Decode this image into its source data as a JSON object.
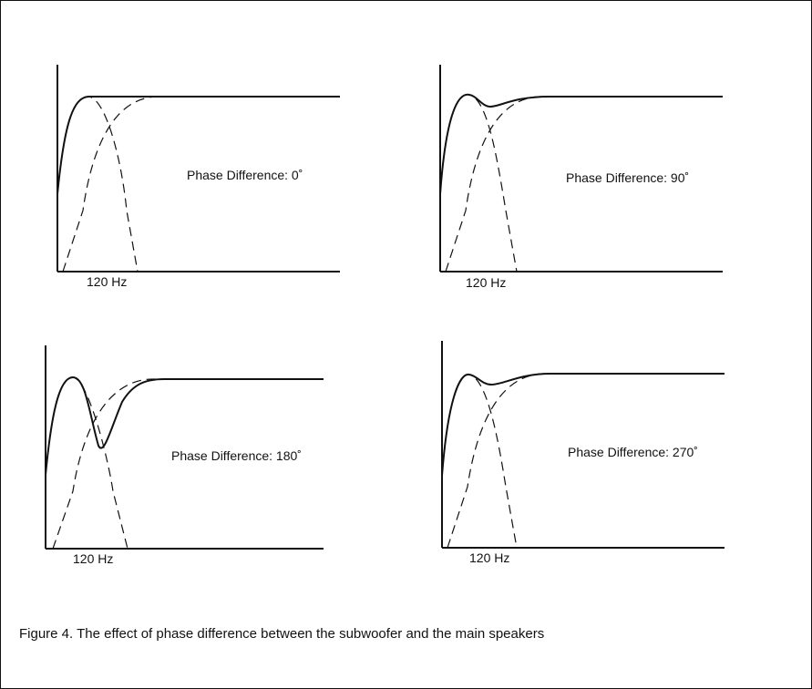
{
  "panels": [
    {
      "id": "phase-0",
      "phase_label": "Phase Difference: 0˚",
      "freq_label": "120 Hz"
    },
    {
      "id": "phase-90",
      "phase_label": "Phase Difference: 90˚",
      "freq_label": "120 Hz"
    },
    {
      "id": "phase-180",
      "phase_label": "Phase Difference: 180˚",
      "freq_label": "120 Hz"
    },
    {
      "id": "phase-270",
      "phase_label": "Phase Difference: 270˚",
      "freq_label": "120 Hz"
    }
  ],
  "caption": "Figure 4. The effect of phase difference between the subwoofer and the main speakers",
  "colors": {
    "line": "#111111",
    "background": "#ffffff",
    "border": "#111111"
  }
}
